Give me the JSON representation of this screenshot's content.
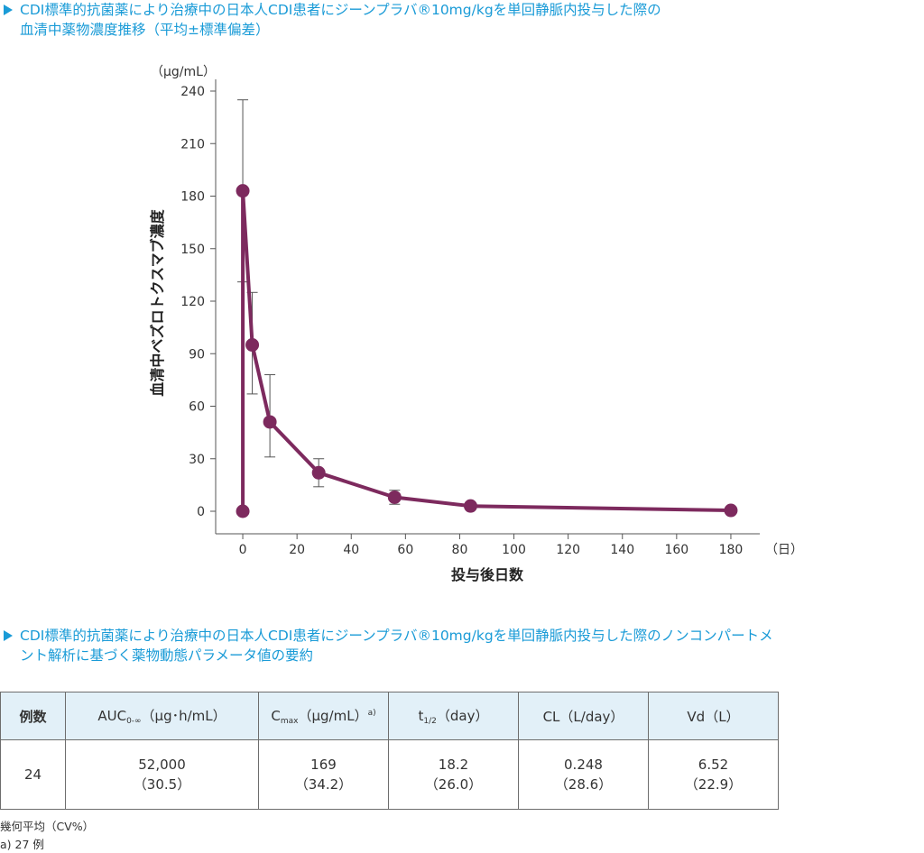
{
  "section1": {
    "line1": "CDI標準的抗菌薬により治療中の日本人CDI患者にジーンプラバ®10mg/kgを単回静脈内投与した際の",
    "line2": "血清中薬物濃度推移（平均±標準偏差）"
  },
  "section2": {
    "line1": "CDI標準的抗菌薬により治療中の日本人CDI患者にジーンプラバ®10mg/kgを単回静脈内投与した際のノンコンパートメ",
    "line2": "ント解析に基づく薬物動態パラメータ値の要約"
  },
  "chart_data": {
    "type": "line",
    "title": "",
    "xlabel": "投与後日数",
    "x_unit": "（日）",
    "ylabel": "血清中ベズロトクスマブ濃度",
    "y_unit": "（μg/mL）",
    "xlim": [
      -10,
      190
    ],
    "ylim": [
      0,
      240
    ],
    "x_ticks": [
      0,
      20,
      40,
      60,
      80,
      100,
      120,
      140,
      160,
      180
    ],
    "y_ticks": [
      0,
      30,
      60,
      90,
      120,
      150,
      180,
      210,
      240
    ],
    "grid": false,
    "color": "#7d2a5e",
    "series": [
      {
        "name": "",
        "points": [
          {
            "x": 0,
            "y": 0
          },
          {
            "x": 0,
            "y": 183,
            "err_low": 131,
            "err_high": 235
          },
          {
            "x": 3.5,
            "y": 95,
            "err_low": 67,
            "err_high": 125
          },
          {
            "x": 10,
            "y": 51,
            "err_low": 31,
            "err_high": 78
          },
          {
            "x": 28,
            "y": 22,
            "err_low": 14,
            "err_high": 30
          },
          {
            "x": 56,
            "y": 8,
            "err_low": 4,
            "err_high": 12
          },
          {
            "x": 84,
            "y": 3
          },
          {
            "x": 180,
            "y": 0.5
          }
        ]
      }
    ]
  },
  "table": {
    "headers": [
      {
        "main": "例数",
        "sub": "",
        "rest": "",
        "sup": ""
      },
      {
        "main": "AUC",
        "sub": "0-∞",
        "rest": "（μg･h/mL）",
        "sup": ""
      },
      {
        "main": "C",
        "sub": "max",
        "rest": "（μg/mL）",
        "sup": "a)"
      },
      {
        "main": "t",
        "sub": "1/2",
        "rest": "（day）",
        "sup": ""
      },
      {
        "main": "CL（L/day）",
        "sub": "",
        "rest": "",
        "sup": ""
      },
      {
        "main": "Vd（L）",
        "sub": "",
        "rest": "",
        "sup": ""
      }
    ],
    "row": [
      {
        "value": "24",
        "cv": ""
      },
      {
        "value": "52,000",
        "cv": "（30.5）"
      },
      {
        "value": "169",
        "cv": "（34.2）"
      },
      {
        "value": "18.2",
        "cv": "（26.0）"
      },
      {
        "value": "0.248",
        "cv": "（28.6）"
      },
      {
        "value": "6.52",
        "cv": "（22.9）"
      }
    ]
  },
  "notes": {
    "line1": "幾何平均（CV%）",
    "line2": "a) 27 例"
  }
}
